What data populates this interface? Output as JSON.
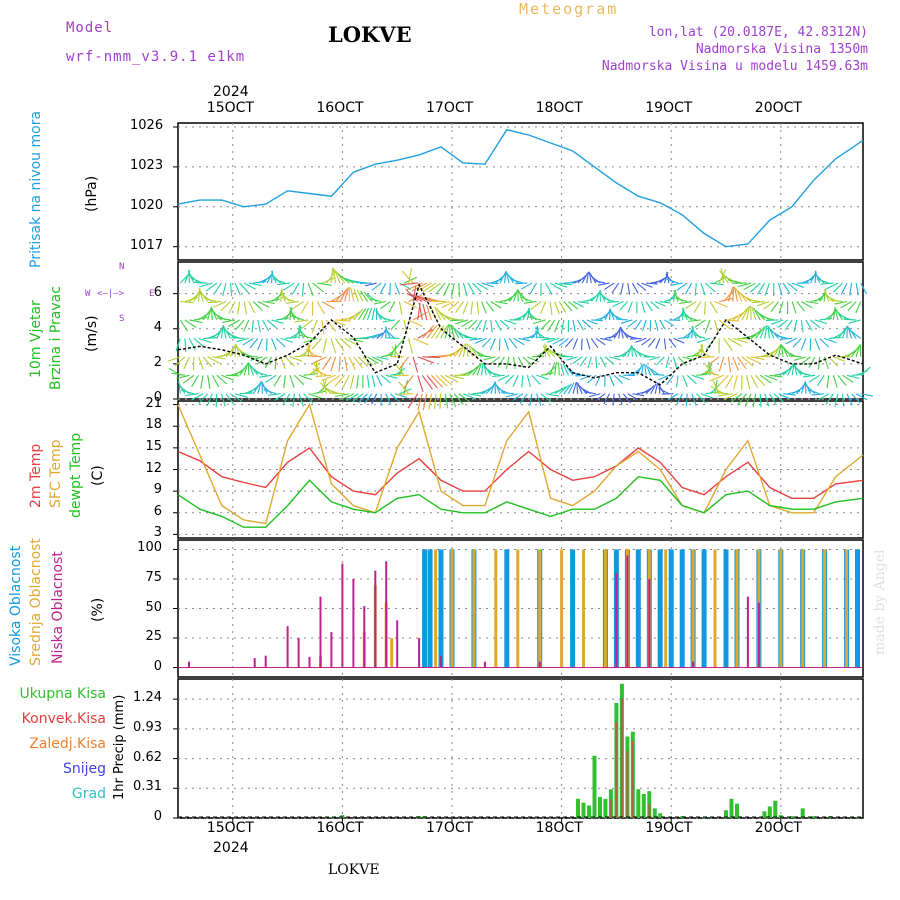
{
  "header": {
    "model_label": "Model",
    "model_value": "wrf-nmm_v3.9.1  e1km",
    "station": "LOKVE",
    "meteogram_label": "Meteogram",
    "coords": "lon,lat (20.0187E, 42.8312N)",
    "altitude": "Nadmorska Visina 1350m",
    "model_altitude": "Nadmorska Visina u modelu 1459.63m",
    "footer_station": "LOKVE",
    "watermark": "made by Angel"
  },
  "time_axis": {
    "year": "2024",
    "start_day": 14.5,
    "end_day": 20.75,
    "day_ticks": [
      15,
      16,
      17,
      18,
      19,
      20
    ],
    "day_tick_labels": [
      "15OCT",
      "16OCT",
      "17OCT",
      "18OCT",
      "19OCT",
      "20OCT"
    ]
  },
  "panels": {
    "pressure": {
      "ylabel_a": "Pritisak na nivou mora",
      "unit": "(hPa)",
      "ticks": [
        "1026",
        "1023",
        "1020",
        "1017"
      ]
    },
    "wind": {
      "ylabel_a": "10m Vjetar",
      "ylabel_b": "Brzina i Pravac",
      "unit": "(m/s)",
      "ticks": [
        "6",
        "4",
        "2",
        "0"
      ],
      "compass_n": "N",
      "compass_w": "W",
      "compass_e": "E",
      "compass_s": "S"
    },
    "temp": {
      "ylabel_a": "2m Temp",
      "ylabel_b": "SFC Temp",
      "ylabel_c": "dewpt Temp",
      "unit": "(C)",
      "ticks": [
        "21",
        "18",
        "15",
        "12",
        "9",
        "6",
        "3"
      ]
    },
    "cloud": {
      "ylabel_a": "Visoka Oblacnost",
      "ylabel_b": "Srednja Oblacnost",
      "ylabel_c": "Niska Oblacnost",
      "unit": "(%)",
      "ticks": [
        "100",
        "75",
        "50",
        "25",
        "0"
      ]
    },
    "precip": {
      "legend": [
        "Ukupna Kisa",
        "Konvek.Kisa",
        "Zaledj.Kisa",
        "Snijeg",
        "Grad"
      ],
      "ylabel": "1hr Precip (mm)",
      "ticks": [
        "1.24",
        "0.93",
        "0.62",
        "0.31",
        "0"
      ]
    }
  },
  "colors": {
    "pressure": "#20a0e0",
    "t2m": "#e84040",
    "sfc": "#e0a830",
    "dew": "#20c020",
    "cloud_high": "#1098e0",
    "cloud_mid": "#e0a830",
    "cloud_low": "#c02090",
    "precip_total": "#30c030",
    "precip_conv": "#e04040",
    "precip_frz": "#f08030",
    "snow": "#4040e0",
    "hail": "#30c0c0",
    "purple_text": "#a040d0",
    "meteogram_text": "#e8b860"
  },
  "chart_data": [
    {
      "type": "line",
      "title": "",
      "ylabel": "Pritisak na nivou mora (hPa)",
      "ylim": [
        1016,
        1026.3
      ],
      "series": [
        {
          "name": "Pritisak na nivou mora",
          "x": [
            14.5,
            14.7,
            14.9,
            15.1,
            15.3,
            15.5,
            15.7,
            15.9,
            16.1,
            16.3,
            16.5,
            16.7,
            16.9,
            17.1,
            17.3,
            17.5,
            17.7,
            17.9,
            18.1,
            18.3,
            18.5,
            18.7,
            18.9,
            19.1,
            19.3,
            19.5,
            19.7,
            19.9,
            20.1,
            20.3,
            20.5,
            20.75
          ],
          "y": [
            1020.2,
            1020.5,
            1020.5,
            1020.0,
            1020.2,
            1021.2,
            1021.0,
            1020.8,
            1022.6,
            1023.2,
            1023.5,
            1023.9,
            1024.5,
            1023.3,
            1023.2,
            1025.8,
            1025.4,
            1024.8,
            1024.2,
            1023.0,
            1021.8,
            1020.8,
            1020.3,
            1019.4,
            1018.0,
            1017.0,
            1017.2,
            1019.0,
            1020.0,
            1022.0,
            1023.6,
            1025.0
          ]
        }
      ]
    },
    {
      "type": "line",
      "title": "",
      "ylabel": "10m Vjetar Brzina i Pravac (m/s)",
      "ylim": [
        0,
        7.8
      ],
      "series": [
        {
          "name": "10m Vjetar",
          "x": [
            14.5,
            14.7,
            14.9,
            15.1,
            15.3,
            15.5,
            15.7,
            15.9,
            16.1,
            16.3,
            16.5,
            16.7,
            16.9,
            17.1,
            17.3,
            17.5,
            17.7,
            17.9,
            18.1,
            18.3,
            18.5,
            18.7,
            18.9,
            19.1,
            19.3,
            19.5,
            19.7,
            19.9,
            20.1,
            20.3,
            20.5,
            20.75
          ],
          "y": [
            2.8,
            3.0,
            2.8,
            2.5,
            2.0,
            2.5,
            3.2,
            4.5,
            3.5,
            1.5,
            2.0,
            6.5,
            4.0,
            3.0,
            2.0,
            2.0,
            1.8,
            3.0,
            1.5,
            1.2,
            1.5,
            1.5,
            0.8,
            2.0,
            2.5,
            4.5,
            3.5,
            2.5,
            2.0,
            2.0,
            2.5,
            2.0
          ]
        }
      ]
    },
    {
      "type": "line",
      "title": "",
      "ylabel": "(C)",
      "ylim": [
        2.5,
        21.5
      ],
      "series": [
        {
          "name": "2m Temp",
          "x": [
            14.5,
            14.7,
            14.9,
            15.1,
            15.3,
            15.5,
            15.7,
            15.9,
            16.1,
            16.3,
            16.5,
            16.7,
            16.9,
            17.1,
            17.3,
            17.5,
            17.7,
            17.9,
            18.1,
            18.3,
            18.5,
            18.7,
            18.9,
            19.1,
            19.3,
            19.5,
            19.7,
            19.9,
            20.1,
            20.3,
            20.5,
            20.75
          ],
          "y": [
            14.5,
            13.2,
            11.0,
            10.2,
            9.5,
            13.0,
            15.0,
            11.0,
            9.0,
            8.5,
            11.5,
            13.5,
            10.5,
            9.0,
            9.0,
            12.0,
            14.5,
            12.0,
            10.5,
            11.0,
            12.5,
            15.0,
            13.0,
            9.5,
            8.5,
            11.0,
            13.0,
            9.5,
            8.0,
            8.0,
            10.0,
            10.5
          ]
        },
        {
          "name": "SFC Temp",
          "x": [
            14.5,
            14.7,
            14.9,
            15.1,
            15.3,
            15.5,
            15.7,
            15.9,
            16.1,
            16.3,
            16.5,
            16.7,
            16.9,
            17.1,
            17.3,
            17.5,
            17.7,
            17.9,
            18.1,
            18.3,
            18.5,
            18.7,
            18.9,
            19.1,
            19.3,
            19.5,
            19.7,
            19.9,
            20.1,
            20.3,
            20.5,
            20.75
          ],
          "y": [
            21.0,
            14.0,
            7.0,
            5.0,
            4.5,
            16.0,
            21.0,
            10.0,
            7.0,
            6.0,
            15.0,
            20.0,
            9.0,
            7.0,
            7.0,
            16.0,
            20.0,
            8.0,
            7.0,
            9.0,
            12.5,
            14.5,
            12.0,
            7.0,
            6.0,
            12.0,
            16.0,
            7.0,
            6.0,
            6.0,
            11.0,
            14.0
          ]
        },
        {
          "name": "dewpt Temp",
          "x": [
            14.5,
            14.7,
            14.9,
            15.1,
            15.3,
            15.5,
            15.7,
            15.9,
            16.1,
            16.3,
            16.5,
            16.7,
            16.9,
            17.1,
            17.3,
            17.5,
            17.7,
            17.9,
            18.1,
            18.3,
            18.5,
            18.7,
            18.9,
            19.1,
            19.3,
            19.5,
            19.7,
            19.9,
            20.1,
            20.3,
            20.5,
            20.75
          ],
          "y": [
            8.5,
            6.5,
            5.5,
            4.0,
            4.0,
            7.0,
            10.5,
            7.5,
            6.5,
            6.0,
            8.0,
            8.5,
            6.5,
            6.0,
            6.0,
            7.5,
            6.5,
            5.5,
            6.5,
            6.5,
            8.0,
            11.0,
            10.5,
            7.0,
            6.0,
            8.5,
            9.0,
            7.0,
            6.5,
            6.5,
            7.5,
            8.0
          ]
        }
      ]
    },
    {
      "type": "bar",
      "title": "",
      "ylabel": "(%)",
      "ylim": [
        0,
        100
      ],
      "series": [
        {
          "name": "Visoka Oblacnost",
          "x": [
            16.75,
            16.8,
            16.9,
            17.0,
            17.2,
            17.5,
            17.8,
            18.1,
            18.4,
            18.5,
            18.6,
            18.7,
            18.8,
            18.9,
            19.0,
            19.1,
            19.2,
            19.3,
            19.5,
            19.6,
            19.8,
            20.0,
            20.2,
            20.4,
            20.6,
            20.7
          ],
          "values": [
            100,
            100,
            100,
            100,
            100,
            100,
            100,
            100,
            100,
            100,
            100,
            100,
            100,
            100,
            100,
            100,
            100,
            100,
            100,
            100,
            100,
            100,
            100,
            100,
            100,
            100
          ]
        },
        {
          "name": "Srednja Oblacnost",
          "x": [
            15.8,
            16.2,
            16.3,
            16.4,
            16.45,
            16.85,
            17.0,
            17.2,
            17.4,
            17.6,
            17.8,
            18.0,
            18.2,
            18.4,
            18.6,
            18.8,
            18.95,
            19.2,
            19.4,
            19.6,
            19.8,
            20.0,
            20.2,
            20.4,
            20.6
          ],
          "values": [
            10,
            30,
            70,
            55,
            25,
            100,
            100,
            100,
            100,
            100,
            100,
            100,
            100,
            100,
            100,
            100,
            100,
            100,
            100,
            100,
            100,
            100,
            100,
            100,
            100
          ]
        },
        {
          "name": "Niska Oblacnost",
          "x": [
            14.6,
            15.2,
            15.3,
            15.5,
            15.6,
            15.7,
            15.8,
            15.9,
            16.0,
            16.1,
            16.2,
            16.3,
            16.4,
            16.5,
            16.7,
            16.9,
            17.3,
            17.8,
            18.5,
            18.6,
            18.8,
            19.2,
            19.7,
            19.8
          ],
          "values": [
            5,
            8,
            10,
            35,
            25,
            9,
            60,
            30,
            88,
            75,
            52,
            82,
            90,
            40,
            25,
            10,
            5,
            5,
            80,
            95,
            75,
            5,
            60,
            55
          ]
        }
      ]
    },
    {
      "type": "bar",
      "title": "",
      "ylabel": "1hr Precip (mm)",
      "ylim": [
        0,
        1.45
      ],
      "series": [
        {
          "name": "Ukupna Kisa",
          "x": [
            15.9,
            16.0,
            16.7,
            16.75,
            18.15,
            18.2,
            18.25,
            18.3,
            18.35,
            18.4,
            18.45,
            18.5,
            18.55,
            18.6,
            18.65,
            18.7,
            18.75,
            18.8,
            18.85,
            18.9,
            19.1,
            19.3,
            19.5,
            19.55,
            19.6,
            19.85,
            19.9,
            19.95,
            20.0,
            20.1,
            20.2,
            20.3,
            20.45,
            20.7
          ],
          "values": [
            0.01,
            0.03,
            0.02,
            0.02,
            0.2,
            0.16,
            0.13,
            0.65,
            0.22,
            0.2,
            0.3,
            1.2,
            1.4,
            0.85,
            0.9,
            0.3,
            0.25,
            0.28,
            0.1,
            0.05,
            0.02,
            0.01,
            0.08,
            0.2,
            0.15,
            0.07,
            0.12,
            0.18,
            0.03,
            0.02,
            0.1,
            0.02,
            0.02,
            0.01
          ]
        },
        {
          "name": "Konvek.Kisa",
          "x": [
            18.45,
            18.5,
            18.55,
            18.6,
            18.65,
            18.8
          ],
          "values": [
            0.2,
            1.0,
            1.25,
            0.7,
            0.8,
            0.15
          ]
        }
      ]
    }
  ]
}
